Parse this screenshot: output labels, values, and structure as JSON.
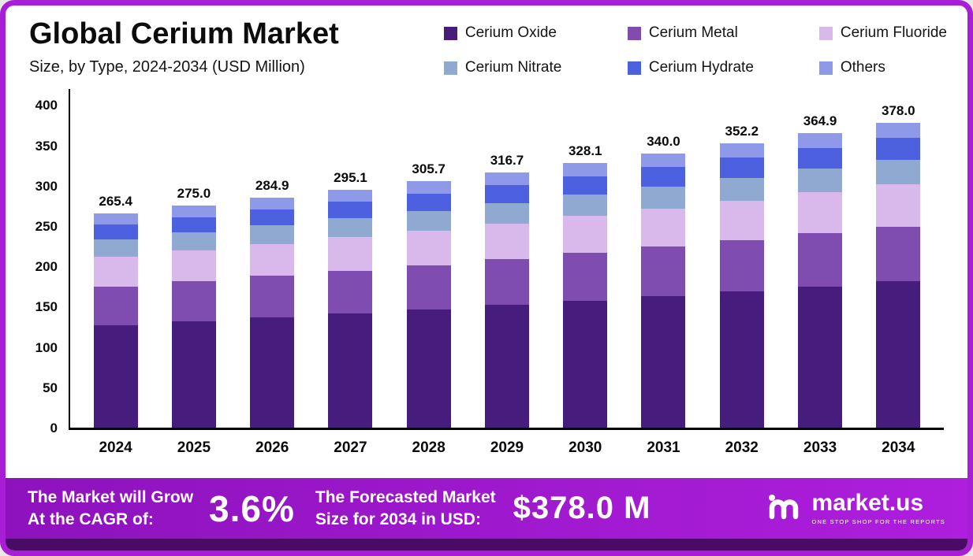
{
  "title": "Global Cerium Market",
  "subtitle": "Size, by Type, 2024-2034 (USD Million)",
  "chart_data": {
    "type": "bar",
    "stacked": true,
    "grid": false,
    "legend_position": "top-right",
    "xlabel": "",
    "ylabel": "",
    "ylim": [
      0,
      400
    ],
    "yticks": [
      0,
      50,
      100,
      150,
      200,
      250,
      300,
      350,
      400
    ],
    "categories": [
      "2024",
      "2025",
      "2026",
      "2027",
      "2028",
      "2029",
      "2030",
      "2031",
      "2032",
      "2033",
      "2034"
    ],
    "totals": [
      265.4,
      275.0,
      284.9,
      295.1,
      305.7,
      316.7,
      328.1,
      340.0,
      352.2,
      364.9,
      378.0
    ],
    "series": [
      {
        "name": "Cerium Oxide",
        "color": "#461c7c",
        "values": [
          127.4,
          132.0,
          136.8,
          141.6,
          146.7,
          152.0,
          157.5,
          163.2,
          169.1,
          175.2,
          181.4
        ]
      },
      {
        "name": "Cerium Metal",
        "color": "#7f4cb0",
        "values": [
          47.8,
          49.5,
          51.3,
          53.1,
          55.0,
          57.0,
          59.1,
          61.2,
          63.4,
          65.7,
          68.0
        ]
      },
      {
        "name": "Cerium Fluoride",
        "color": "#d9b9ec",
        "values": [
          37.2,
          38.5,
          39.9,
          41.3,
          42.8,
          44.3,
          45.9,
          47.6,
          49.3,
          51.1,
          52.9
        ]
      },
      {
        "name": "Cerium Nitrate",
        "color": "#8fa9d0",
        "values": [
          21.2,
          22.0,
          22.8,
          23.6,
          24.5,
          25.3,
          26.2,
          27.2,
          28.2,
          29.2,
          30.2
        ]
      },
      {
        "name": "Cerium Hydrate",
        "color": "#4c60e0",
        "values": [
          18.6,
          19.3,
          19.9,
          20.7,
          21.4,
          22.2,
          23.0,
          23.8,
          24.7,
          25.5,
          26.5
        ]
      },
      {
        "name": "Others",
        "color": "#8e9ae8",
        "values": [
          13.3,
          13.8,
          14.2,
          14.8,
          15.3,
          15.8,
          16.4,
          17.0,
          17.6,
          18.2,
          18.9
        ]
      }
    ]
  },
  "footer": {
    "cagr_label_line1": "The Market will Grow",
    "cagr_label_line2": "At the CAGR of:",
    "cagr_value": "3.6%",
    "forecast_label_line1": "The Forecasted Market",
    "forecast_label_line2": "Size for 2034 in USD:",
    "forecast_value": "$378.0 M",
    "brand": "market.us",
    "brand_tagline": "ONE STOP SHOP FOR THE REPORTS"
  }
}
